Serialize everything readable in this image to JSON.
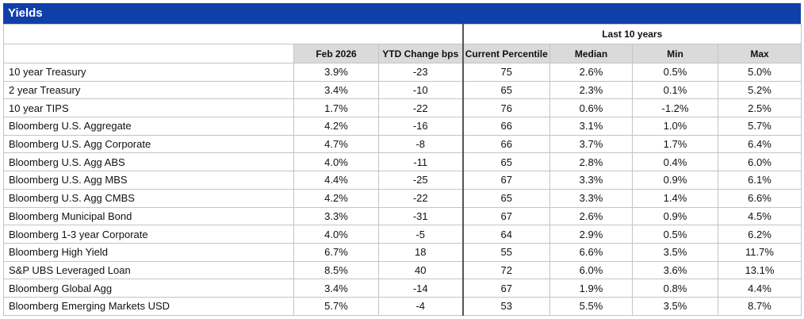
{
  "header": {
    "title": "Yields"
  },
  "table": {
    "group_header": "Last 10 years",
    "columns": [
      "Feb 2026",
      "YTD Change bps",
      "Current Percentile",
      "Median",
      "Min",
      "Max"
    ],
    "rows": [
      [
        "10 year Treasury",
        "3.9%",
        "-23",
        "75",
        "2.6%",
        "0.5%",
        "5.0%"
      ],
      [
        "2 year Treasury",
        "3.4%",
        "-10",
        "65",
        "2.3%",
        "0.1%",
        "5.2%"
      ],
      [
        "10 year TIPS",
        "1.7%",
        "-22",
        "76",
        "0.6%",
        "-1.2%",
        "2.5%"
      ],
      [
        "Bloomberg U.S. Aggregate",
        "4.2%",
        "-16",
        "66",
        "3.1%",
        "1.0%",
        "5.7%"
      ],
      [
        "Bloomberg U.S. Agg Corporate",
        "4.7%",
        "-8",
        "66",
        "3.7%",
        "1.7%",
        "6.4%"
      ],
      [
        "Bloomberg U.S. Agg ABS",
        "4.0%",
        "-11",
        "65",
        "2.8%",
        "0.4%",
        "6.0%"
      ],
      [
        "Bloomberg U.S. Agg MBS",
        "4.4%",
        "-25",
        "67",
        "3.3%",
        "0.9%",
        "6.1%"
      ],
      [
        "Bloomberg U.S. Agg CMBS",
        "4.2%",
        "-22",
        "65",
        "3.3%",
        "1.4%",
        "6.6%"
      ],
      [
        "Bloomberg Municipal Bond",
        "3.3%",
        "-31",
        "67",
        "2.6%",
        "0.9%",
        "4.5%"
      ],
      [
        "Bloomberg 1-3 year Corporate",
        "4.0%",
        "-5",
        "64",
        "2.9%",
        "0.5%",
        "6.2%"
      ],
      [
        "Bloomberg High Yield",
        "6.7%",
        "18",
        "55",
        "6.6%",
        "3.5%",
        "11.7%"
      ],
      [
        "S&P UBS Leveraged Loan",
        "8.5%",
        "40",
        "72",
        "6.0%",
        "3.6%",
        "13.1%"
      ],
      [
        "Bloomberg Global Agg",
        "3.4%",
        "-14",
        "67",
        "1.9%",
        "0.8%",
        "4.4%"
      ],
      [
        "Bloomberg Emerging Markets USD",
        "5.7%",
        "-4",
        "53",
        "5.5%",
        "3.5%",
        "8.7%"
      ]
    ]
  }
}
